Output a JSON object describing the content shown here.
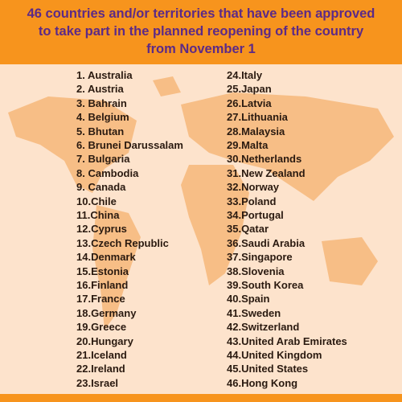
{
  "header": {
    "title_lines": [
      "46 countries and/or territories that have been approved",
      "to take part in the planned reopening of the country",
      "from November 1"
    ]
  },
  "list": {
    "columns": [
      [
        "1. Australia",
        "2. Austria",
        "3. Bahrain",
        "4. Belgium",
        "5. Bhutan",
        "6. Brunei Darussalam",
        "7. Bulgaria",
        "8. Cambodia",
        "9. Canada",
        "10.Chile",
        "11.China",
        "12.Cyprus",
        "13.Czech Republic",
        "14.Denmark",
        "15.Estonia",
        "16.Finland",
        "17.France",
        "18.Germany",
        "19.Greece",
        "20.Hungary",
        "21.Iceland",
        "22.Ireland",
        "23.Israel"
      ],
      [
        "24.Italy",
        "25.Japan",
        "26.Latvia",
        "27.Lithuania",
        "28.Malaysia",
        "29.Malta",
        "30.Netherlands",
        "31.New Zealand",
        "32.Norway",
        "33.Poland",
        "34.Portugal",
        "35.Qatar",
        "36.Saudi Arabia",
        "37.Singapore",
        "38.Slovenia",
        "39.South Korea",
        "40.Spain",
        "41.Sweden",
        "42.Switzerland",
        "43.United Arab Emirates",
        "44.United Kingdom",
        "45.United States",
        "46.Hong Kong"
      ]
    ]
  }
}
